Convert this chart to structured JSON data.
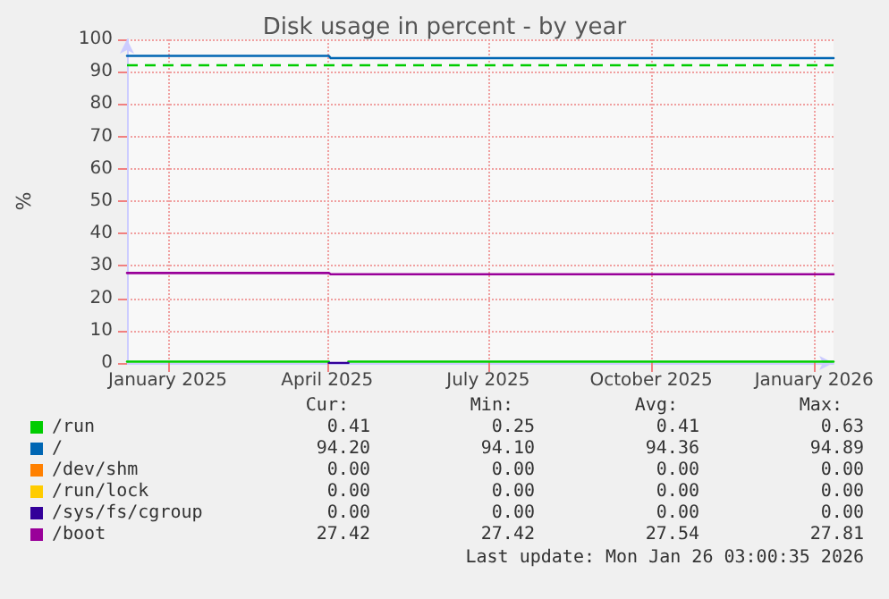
{
  "chart_data": {
    "type": "line",
    "title": "Disk usage in percent - by year",
    "ylabel": "%",
    "x": [
      "2024-12-09",
      "2025-04-02",
      "2025-04-03",
      "2025-04-04",
      "2025-04-13",
      "2026-01-12"
    ],
    "series": [
      {
        "name": "/run",
        "color": "#00cc00",
        "values": [
          0.4,
          0.4,
          null,
          null,
          0.4,
          0.4
        ]
      },
      {
        "name": "/",
        "color": "#0066b3",
        "values": [
          94.9,
          94.9,
          94.2,
          94.2,
          94.2,
          94.2
        ]
      },
      {
        "name": "/dev/shm",
        "color": "#ff8000",
        "values": [
          null,
          null,
          null,
          null,
          null,
          null
        ]
      },
      {
        "name": "/run/lock",
        "color": "#ffcc00",
        "values": [
          null,
          null,
          null,
          null,
          null,
          null
        ]
      },
      {
        "name": "/sys/fs/cgroup",
        "color": "#330099",
        "values": [
          null,
          0,
          0,
          0,
          0,
          null
        ]
      },
      {
        "name": "/boot",
        "color": "#990099",
        "values": [
          27.8,
          27.8,
          27.4,
          27.4,
          27.4,
          27.4
        ]
      }
    ],
    "xlim": [
      "2024-12-09",
      "2026-01-12"
    ],
    "xticks": [
      {
        "value": "2025-01-01",
        "label": "January 2025"
      },
      {
        "value": "2025-04-01",
        "label": "April 2025"
      },
      {
        "value": "2025-07-01",
        "label": "July 2025"
      },
      {
        "value": "2025-10-01",
        "label": "October 2025"
      },
      {
        "value": "2026-01-01",
        "label": "January 2026"
      }
    ],
    "ylim": [
      0,
      100
    ],
    "yticks": [
      0,
      10,
      20,
      30,
      40,
      50,
      60,
      70,
      80,
      90,
      100
    ],
    "ref_lines": [
      {
        "axis": "y",
        "value": 92,
        "color": "#00cc00",
        "line_style": "dashed"
      }
    ],
    "grid": true,
    "legend": "bottom",
    "marker": "none",
    "line_style": "solid",
    "annotations": [
      "Cur:",
      "Min:",
      "Avg:",
      "Max:",
      "0.41",
      "0.25",
      "0.41",
      "0.63",
      "94.20",
      "94.10",
      "94.36",
      "94.89",
      "0.00",
      "0.00",
      "0.00",
      "0.00",
      "0.00",
      "0.00",
      "0.00",
      "0.00",
      "0.00",
      "0.00",
      "0.00",
      "0.00",
      "27.42",
      "27.42",
      "27.54",
      "27.81",
      "Last update: Mon Jan 26 03:00:35 2026"
    ]
  }
}
